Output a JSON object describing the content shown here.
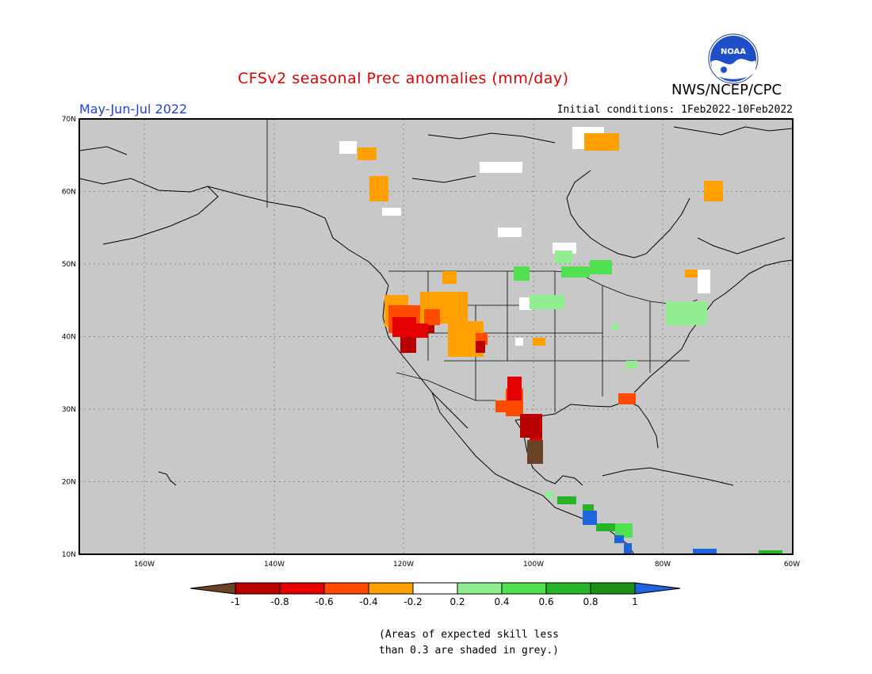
{
  "title": "CFSv2 seasonal Prec anomalies (mm/day)",
  "agency": "NWS/NCEP/CPC",
  "logo_text": "NOAA",
  "season": "May-Jun-Jul 2022",
  "initial_conditions": "Initial conditions: 1Feb2022-10Feb2022",
  "map": {
    "lat_ticks": [
      "70N",
      "60N",
      "50N",
      "40N",
      "30N",
      "20N",
      "10N"
    ],
    "lon_ticks": [
      "160W",
      "140W",
      "120W",
      "100W",
      "80W",
      "60W"
    ],
    "grey_meaning": "skill < 0.3"
  },
  "colorbar": {
    "labels": [
      "-1",
      "-0.8",
      "-0.6",
      "-0.4",
      "-0.2",
      "0.2",
      "0.4",
      "0.6",
      "0.8",
      "1"
    ],
    "colors": {
      "lt_-1": "#6b4226",
      "-1_-0.8": "#b80000",
      "-0.8_-0.6": "#e40000",
      "-0.6_-0.4": "#ff4a00",
      "-0.4_-0.2": "#ffa000",
      "-0.2_0.2": "#ffffff",
      "0.2_0.4": "#90ee90",
      "0.4_0.6": "#50e050",
      "0.6_0.8": "#28b428",
      "0.8_1": "#189018",
      "gt_1": "#1e64dc"
    }
  },
  "note_line1": "(Areas of expected skill less",
  "note_line2": "than 0.3 are shaded in grey.)"
}
